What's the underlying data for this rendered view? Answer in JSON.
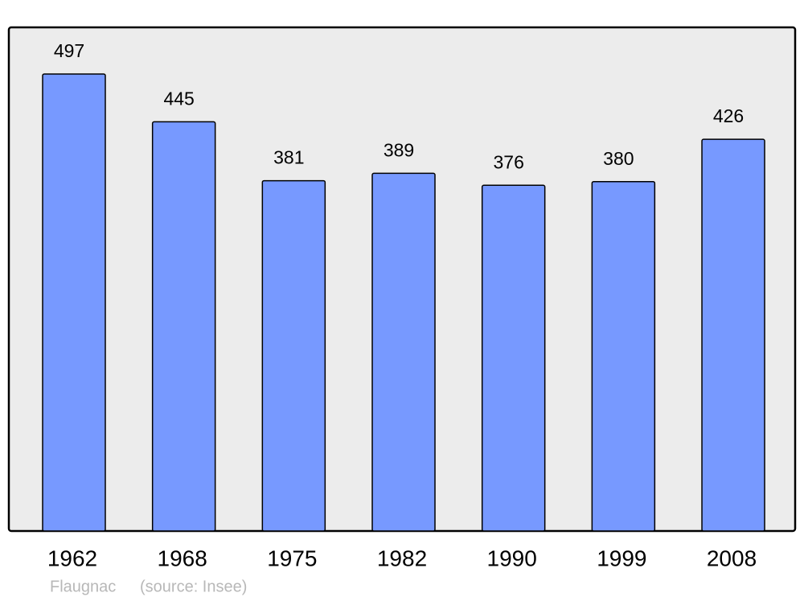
{
  "chart_data": {
    "type": "bar",
    "title": "Flaugnac",
    "source": "(source: Insee)",
    "categories": [
      "1962",
      "1968",
      "1975",
      "1982",
      "1990",
      "1999",
      "2008"
    ],
    "values": [
      497,
      445,
      381,
      389,
      376,
      380,
      426
    ],
    "color": "#7799ff"
  }
}
